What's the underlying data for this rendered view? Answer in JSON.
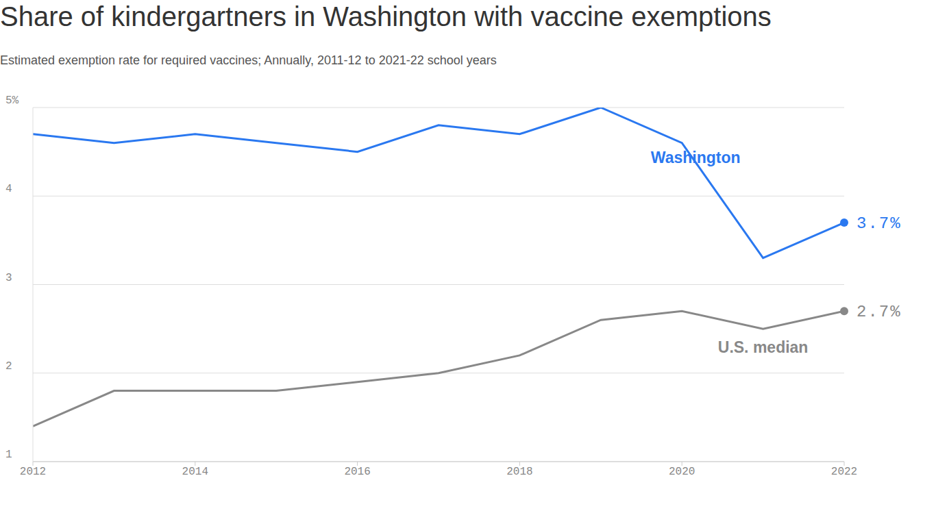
{
  "chart_data": {
    "type": "line",
    "title": "Share of kindergartners in Washington with vaccine exemptions",
    "subtitle": "Estimated exemption rate for required vaccines; Annually, 2011-12 to 2021-22 school years",
    "x": [
      2012,
      2013,
      2014,
      2015,
      2016,
      2017,
      2018,
      2019,
      2020,
      2021,
      2022
    ],
    "series": [
      {
        "name": "Washington",
        "color": "#2a78f0",
        "values": [
          4.7,
          4.6,
          4.7,
          4.6,
          4.5,
          4.8,
          4.7,
          5.0,
          4.6,
          3.3,
          3.7
        ],
        "value_labels": [
          null,
          null,
          null,
          null,
          null,
          null,
          null,
          null,
          null,
          null,
          "3.7%"
        ]
      },
      {
        "name": "U.S. median",
        "color": "#888888",
        "values": [
          1.4,
          1.8,
          1.8,
          1.8,
          1.9,
          2.0,
          2.2,
          2.6,
          2.7,
          2.5,
          2.7
        ],
        "value_labels": [
          null,
          null,
          null,
          null,
          null,
          null,
          null,
          null,
          null,
          null,
          "2.7%"
        ]
      }
    ],
    "xlim": [
      2012,
      2022
    ],
    "xticks": [
      2012,
      2014,
      2016,
      2018,
      2020,
      2022
    ],
    "ylim": [
      1,
      5
    ],
    "yticks": [
      1,
      2,
      3,
      4,
      {
        "value": 5,
        "label": "5%"
      }
    ],
    "grid": true
  }
}
